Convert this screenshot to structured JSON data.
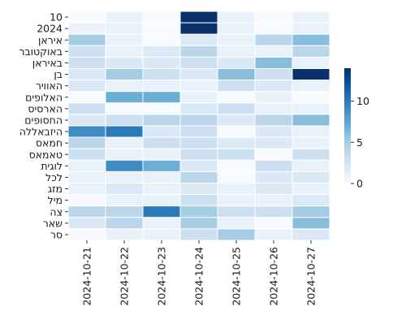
{
  "chart_data": {
    "type": "heatmap",
    "title": "",
    "xlabel": "",
    "ylabel": "",
    "x_categories": [
      "2024-10-21",
      "2024-10-22",
      "2024-10-23",
      "2024-10-24",
      "2024-10-25",
      "2024-10-26",
      "2024-10-27"
    ],
    "y_categories": [
      "10",
      "2024",
      "איראן",
      "באוקטובר",
      "באיראן",
      "בן",
      "האוויר",
      "האלופים",
      "הארסיס",
      "החסופים",
      "היזבאללה",
      "חמאס",
      "טאמאס",
      "לוגית",
      "לכל",
      "מזג",
      "מיל",
      "צה",
      "שאר",
      "סר"
    ],
    "values": [
      [
        0,
        1,
        0,
        14,
        1,
        0,
        1
      ],
      [
        1,
        1,
        0,
        14,
        1,
        0,
        1
      ],
      [
        5,
        1,
        0,
        2,
        1,
        4,
        6
      ],
      [
        3,
        1,
        2,
        4,
        1,
        1,
        4
      ],
      [
        3,
        2,
        2,
        3,
        2,
        6,
        1
      ],
      [
        2,
        5,
        3,
        2,
        6,
        3,
        14
      ],
      [
        2,
        1,
        1,
        1,
        3,
        2,
        1
      ],
      [
        0,
        7,
        7,
        1,
        0,
        1,
        0
      ],
      [
        3,
        0,
        0,
        2,
        3,
        1,
        1
      ],
      [
        2,
        3,
        4,
        4,
        2,
        4,
        6
      ],
      [
        9,
        10,
        2,
        3,
        0,
        2,
        1
      ],
      [
        4,
        1,
        3,
        3,
        2,
        2,
        1
      ],
      [
        3,
        1,
        1,
        3,
        3,
        0,
        3
      ],
      [
        1,
        9,
        7,
        2,
        0,
        3,
        1
      ],
      [
        1,
        1,
        1,
        4,
        0,
        2,
        2
      ],
      [
        1,
        2,
        1,
        2,
        1,
        2,
        1
      ],
      [
        0,
        1,
        1,
        3,
        1,
        1,
        2
      ],
      [
        4,
        4,
        10,
        5,
        3,
        3,
        5
      ],
      [
        2,
        4,
        1,
        5,
        1,
        0,
        6
      ],
      [
        0,
        1,
        1,
        3,
        5,
        1,
        2
      ]
    ],
    "colorbar": {
      "min": 0,
      "max": 14,
      "ticks": [
        0,
        5,
        10
      ]
    },
    "colormap": [
      "#f7fbff",
      "#deebf7",
      "#c6dbef",
      "#9ecae1",
      "#6baed6",
      "#4292c6",
      "#2171b5",
      "#08519c",
      "#08306b"
    ],
    "grid": false,
    "legend": "colorbar-right"
  }
}
